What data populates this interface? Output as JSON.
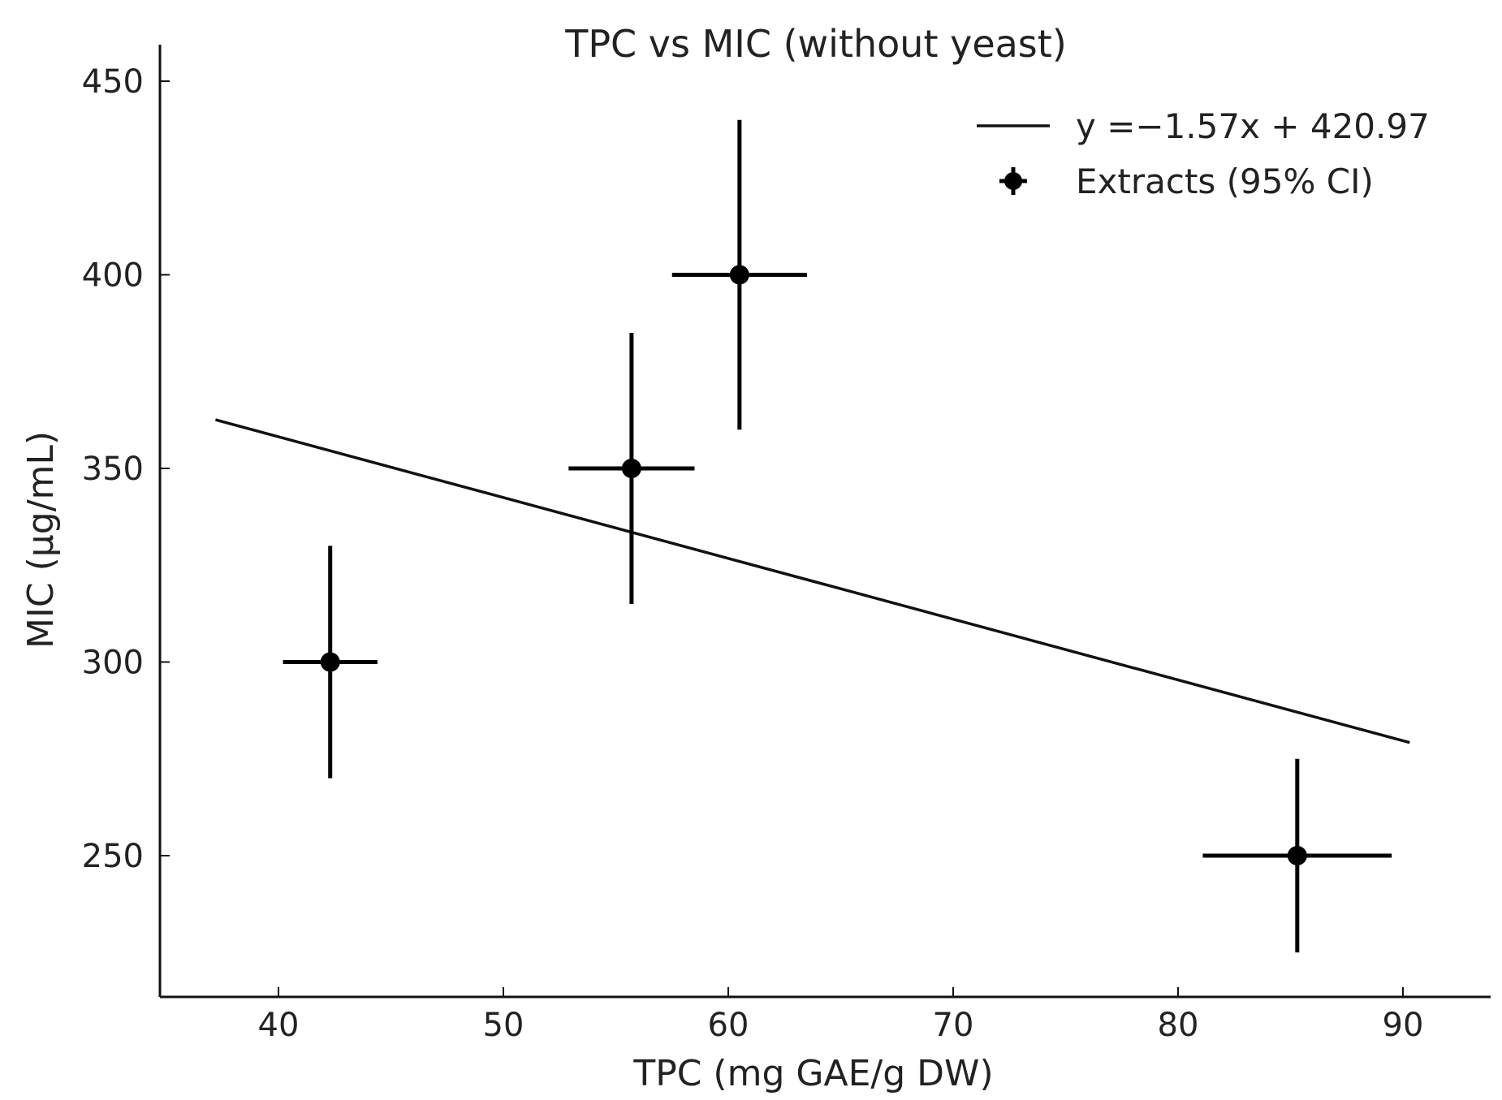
{
  "chart_data": {
    "type": "scatter",
    "title": "TPC vs MIC (without yeast)",
    "xlabel": "TPC (mg GAE/g DW)",
    "ylabel": "MIC (µg/mL)",
    "xlim": [
      35,
      94
    ],
    "ylim": [
      215,
      460
    ],
    "xticks": [
      40,
      50,
      60,
      70,
      80,
      90
    ],
    "yticks": [
      250,
      300,
      350,
      400,
      450
    ],
    "xtick_labels": [
      "40",
      "50",
      "60",
      "70",
      "80",
      "90"
    ],
    "ytick_labels": [
      "250",
      "300",
      "350",
      "400",
      "450"
    ],
    "grid": false,
    "legend_position": "top-right",
    "series": [
      {
        "name": "y =−1.57x + 420.97",
        "kind": "line",
        "slope": -1.57,
        "intercept": 420.97,
        "x_range": [
          37.2,
          90.3
        ]
      },
      {
        "name": "Extracts (95% CI)",
        "kind": "errorbar",
        "points": [
          {
            "x": 42.3,
            "y": 300,
            "x_err": 2.1,
            "y_err_low": 30,
            "y_err_high": 30
          },
          {
            "x": 55.7,
            "y": 350,
            "x_err": 2.8,
            "y_err_low": 35,
            "y_err_high": 35
          },
          {
            "x": 60.5,
            "y": 400,
            "x_err": 3.0,
            "y_err_low": 40,
            "y_err_high": 40
          },
          {
            "x": 85.3,
            "y": 250,
            "x_err": 4.2,
            "y_err_low": 25,
            "y_err_high": 25
          }
        ]
      }
    ],
    "colors": {
      "line": "#111111",
      "markers": "#000000",
      "axes": "#111111",
      "text": "#222222"
    }
  }
}
